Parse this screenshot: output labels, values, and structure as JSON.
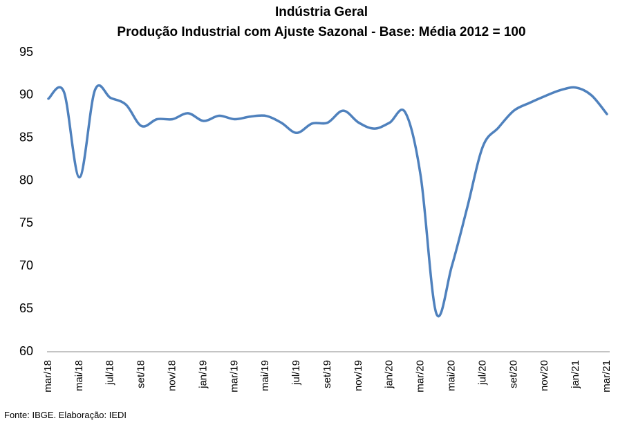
{
  "chart_data": {
    "type": "line",
    "title": "Indústria Geral",
    "subtitle": "Produção Industrial com Ajuste Sazonal - Base: Média 2012 = 100",
    "source": "Fonte: IBGE. Elaboração: IEDI",
    "categories": [
      "mar/18",
      null,
      "mai/18",
      null,
      "jul/18",
      null,
      "set/18",
      null,
      "nov/18",
      null,
      "jan/19",
      null,
      "mar/19",
      null,
      "mai/19",
      null,
      "jul/19",
      null,
      "set/19",
      null,
      "nov/19",
      null,
      "jan/20",
      null,
      "mar/20",
      null,
      "mai/20",
      null,
      "jul/20",
      null,
      "set/20",
      null,
      "nov/20",
      null,
      "jan/21",
      null,
      "mar/21"
    ],
    "series": [
      {
        "name": "Indústria Geral",
        "color": "#4f81bd",
        "values": [
          89.6,
          90.4,
          80.4,
          90.6,
          89.7,
          88.9,
          86.4,
          87.2,
          87.2,
          87.9,
          87.0,
          87.6,
          87.2,
          87.5,
          87.6,
          86.8,
          85.6,
          86.7,
          86.8,
          88.2,
          86.8,
          86.1,
          86.8,
          88.0,
          80.5,
          64.5,
          70.0,
          76.9,
          84.0,
          86.2,
          88.2,
          89.1,
          89.9,
          90.6,
          90.9,
          90.0,
          87.8
        ]
      }
    ],
    "ylim": [
      60,
      95
    ],
    "yticks": [
      60,
      65,
      70,
      75,
      80,
      85,
      90,
      95
    ],
    "grid": false
  }
}
